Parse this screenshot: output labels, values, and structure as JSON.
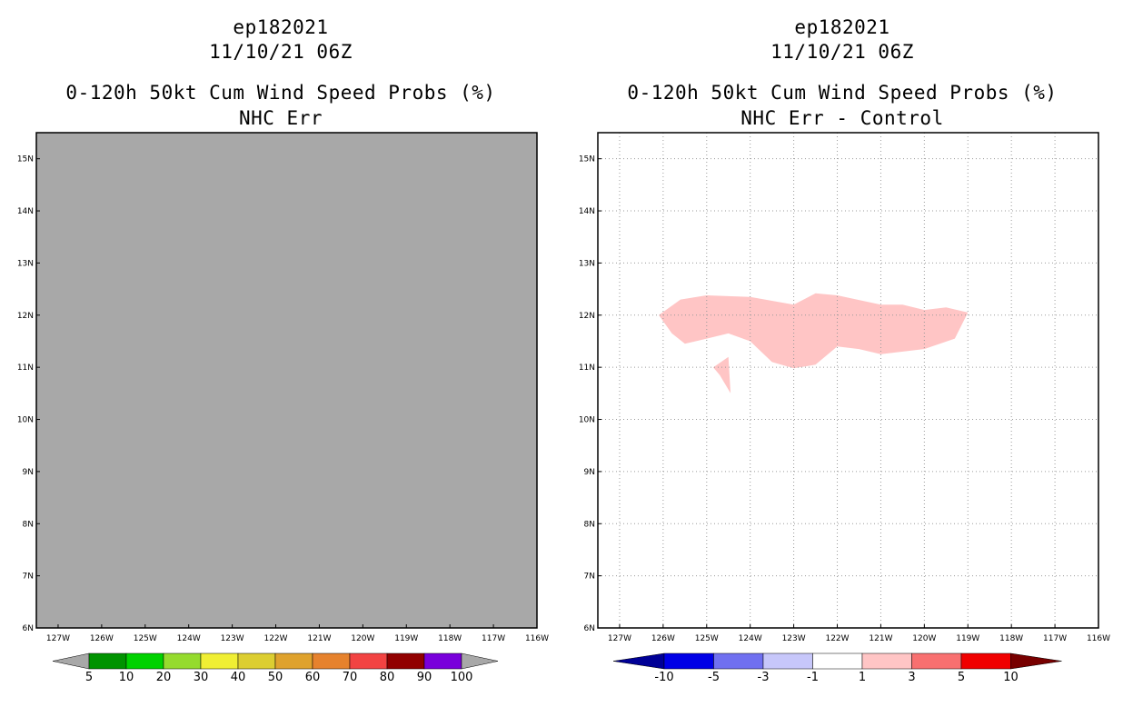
{
  "chart_data": [
    {
      "type": "heatmap",
      "panel_id": "left",
      "title_lines": [
        "ep182021",
        "11/10/21 06Z",
        "0-120h 50kt Cum Wind Speed Probs (%)",
        "NHC Err"
      ],
      "x_ticks": [
        "127W",
        "126W",
        "125W",
        "124W",
        "123W",
        "122W",
        "121W",
        "120W",
        "119W",
        "118W",
        "117W",
        "116W"
      ],
      "y_ticks": [
        "6N",
        "7N",
        "8N",
        "9N",
        "10N",
        "11N",
        "12N",
        "13N",
        "14N",
        "15N"
      ],
      "xlim": [
        -127.5,
        -116
      ],
      "ylim": [
        6,
        15.5
      ],
      "grid": false,
      "field_fill": "#a8a8a8",
      "colorbar": {
        "labels": [
          "5",
          "10",
          "20",
          "30",
          "40",
          "50",
          "60",
          "70",
          "80",
          "90",
          "100"
        ],
        "colors": [
          "#009300",
          "#00d200",
          "#95db2e",
          "#f0ef34",
          "#dcce31",
          "#dfa22d",
          "#e6822d",
          "#f24342",
          "#910000",
          "#7900db"
        ],
        "under_color": "#a8a8a8",
        "over_color": "#a8a8a8"
      }
    },
    {
      "type": "heatmap",
      "panel_id": "right",
      "title_lines": [
        "ep182021",
        "11/10/21 06Z",
        "0-120h 50kt Cum Wind Speed Probs (%)",
        "NHC Err - Control"
      ],
      "x_ticks": [
        "127W",
        "126W",
        "125W",
        "124W",
        "123W",
        "122W",
        "121W",
        "120W",
        "119W",
        "118W",
        "117W",
        "116W"
      ],
      "y_ticks": [
        "6N",
        "7N",
        "8N",
        "9N",
        "10N",
        "11N",
        "12N",
        "13N",
        "14N",
        "15N"
      ],
      "xlim": [
        -127.5,
        -116
      ],
      "ylim": [
        6,
        15.5
      ],
      "grid": true,
      "field_fill": "#ffffff",
      "regions": [
        {
          "level": "1 to 3",
          "color": "#ffc5c5",
          "polygon": [
            [
              -126.1,
              12.0
            ],
            [
              -125.6,
              12.3
            ],
            [
              -125.0,
              12.38
            ],
            [
              -124.0,
              12.35
            ],
            [
              -123.0,
              12.2
            ],
            [
              -122.5,
              12.42
            ],
            [
              -122.0,
              12.38
            ],
            [
              -121.0,
              12.2
            ],
            [
              -120.5,
              12.2
            ],
            [
              -120.0,
              12.1
            ],
            [
              -119.5,
              12.15
            ],
            [
              -119.0,
              12.05
            ],
            [
              -119.3,
              11.55
            ],
            [
              -120.0,
              11.35
            ],
            [
              -121.0,
              11.25
            ],
            [
              -121.5,
              11.35
            ],
            [
              -122.0,
              11.4
            ],
            [
              -122.5,
              11.05
            ],
            [
              -123.0,
              10.98
            ],
            [
              -123.5,
              11.1
            ],
            [
              -124.0,
              11.5
            ],
            [
              -124.5,
              11.65
            ],
            [
              -125.0,
              11.55
            ],
            [
              -125.5,
              11.45
            ],
            [
              -125.8,
              11.65
            ]
          ]
        },
        {
          "level": "1 to 3",
          "color": "#ffc5c5",
          "polygon": [
            [
              -124.85,
              11.0
            ],
            [
              -124.5,
              11.2
            ],
            [
              -124.45,
              10.5
            ],
            [
              -124.7,
              10.85
            ]
          ]
        }
      ],
      "colorbar": {
        "labels": [
          "-10",
          "-5",
          "-3",
          "-1",
          "1",
          "3",
          "5",
          "10"
        ],
        "colors": [
          "#0000e6",
          "#7070f0",
          "#c7c7fa",
          "#ffffff",
          "#ffc5c5",
          "#f87070",
          "#f00000"
        ],
        "under_color": "#000096",
        "over_color": "#780000"
      }
    }
  ]
}
